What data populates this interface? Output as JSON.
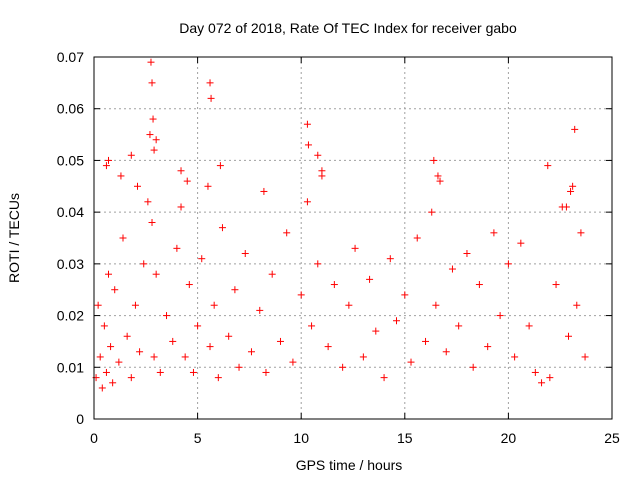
{
  "chart_data": {
    "type": "scatter",
    "title": "Day 072 of 2018, Rate Of TEC Index for receiver gabo",
    "xlabel": "GPS time / hours",
    "ylabel": "ROTI / TECUs",
    "xlim": [
      0,
      25
    ],
    "ylim": [
      0,
      0.07
    ],
    "xticks": [
      0,
      5,
      10,
      15,
      20,
      25
    ],
    "yticks": [
      0,
      0.01,
      0.02,
      0.03,
      0.04,
      0.05,
      0.06,
      0.07
    ],
    "xtick_labels": [
      "0",
      "5",
      "10",
      "15",
      "20",
      "25"
    ],
    "ytick_labels": [
      "0",
      "0.01",
      "0.02",
      "0.03",
      "0.04",
      "0.05",
      "0.06",
      "0.07"
    ],
    "grid": true,
    "marker": "+",
    "color": "#ff0000",
    "series": [
      {
        "name": "ROTI",
        "x": [
          0.1,
          0.2,
          0.3,
          0.4,
          0.5,
          0.6,
          0.7,
          0.8,
          0.9,
          1.0,
          1.2,
          1.4,
          1.6,
          1.8,
          2.0,
          2.2,
          2.4,
          2.6,
          2.7,
          2.8,
          2.9,
          3.0,
          3.2,
          3.5,
          3.8,
          4.0,
          4.2,
          4.4,
          4.6,
          4.8,
          5.0,
          5.2,
          5.5,
          5.6,
          5.8,
          6.0,
          6.2,
          6.5,
          6.8,
          7.0,
          7.3,
          7.6,
          8.0,
          8.3,
          8.6,
          9.0,
          9.3,
          9.6,
          10.0,
          10.3,
          10.5,
          10.8,
          11.0,
          11.3,
          11.6,
          12.0,
          12.3,
          12.6,
          13.0,
          13.3,
          13.6,
          14.0,
          14.3,
          14.6,
          15.0,
          15.3,
          15.6,
          16.0,
          16.3,
          16.5,
          16.7,
          17.0,
          17.3,
          17.6,
          18.0,
          18.3,
          18.6,
          19.0,
          19.3,
          19.6,
          20.0,
          20.3,
          20.6,
          21.0,
          21.3,
          21.6,
          22.0,
          22.3,
          22.6,
          22.9,
          23.1,
          23.3,
          23.5,
          23.7,
          0.6,
          0.7,
          1.3,
          1.8,
          2.1,
          2.75,
          2.8,
          2.85,
          2.9,
          3.0,
          4.2,
          4.5,
          5.6,
          5.65,
          6.1,
          8.2,
          10.3,
          10.35,
          10.8,
          11.0,
          16.4,
          16.6,
          21.9,
          23.2,
          22.8,
          23.0
        ],
        "y": [
          0.008,
          0.022,
          0.012,
          0.006,
          0.018,
          0.009,
          0.028,
          0.014,
          0.007,
          0.025,
          0.011,
          0.035,
          0.016,
          0.008,
          0.022,
          0.013,
          0.03,
          0.042,
          0.055,
          0.038,
          0.012,
          0.028,
          0.009,
          0.02,
          0.015,
          0.033,
          0.041,
          0.012,
          0.026,
          0.009,
          0.018,
          0.031,
          0.045,
          0.014,
          0.022,
          0.008,
          0.037,
          0.016,
          0.025,
          0.01,
          0.032,
          0.013,
          0.021,
          0.009,
          0.028,
          0.015,
          0.036,
          0.011,
          0.024,
          0.042,
          0.018,
          0.03,
          0.047,
          0.014,
          0.026,
          0.01,
          0.022,
          0.033,
          0.012,
          0.027,
          0.017,
          0.008,
          0.031,
          0.019,
          0.024,
          0.011,
          0.035,
          0.015,
          0.04,
          0.022,
          0.046,
          0.013,
          0.029,
          0.018,
          0.032,
          0.01,
          0.026,
          0.014,
          0.036,
          0.02,
          0.03,
          0.012,
          0.034,
          0.018,
          0.009,
          0.007,
          0.008,
          0.026,
          0.041,
          0.016,
          0.045,
          0.022,
          0.036,
          0.012,
          0.049,
          0.05,
          0.047,
          0.051,
          0.045,
          0.069,
          0.065,
          0.058,
          0.052,
          0.054,
          0.048,
          0.046,
          0.065,
          0.062,
          0.049,
          0.044,
          0.057,
          0.053,
          0.051,
          0.048,
          0.05,
          0.047,
          0.049,
          0.056,
          0.041,
          0.044
        ]
      }
    ]
  }
}
